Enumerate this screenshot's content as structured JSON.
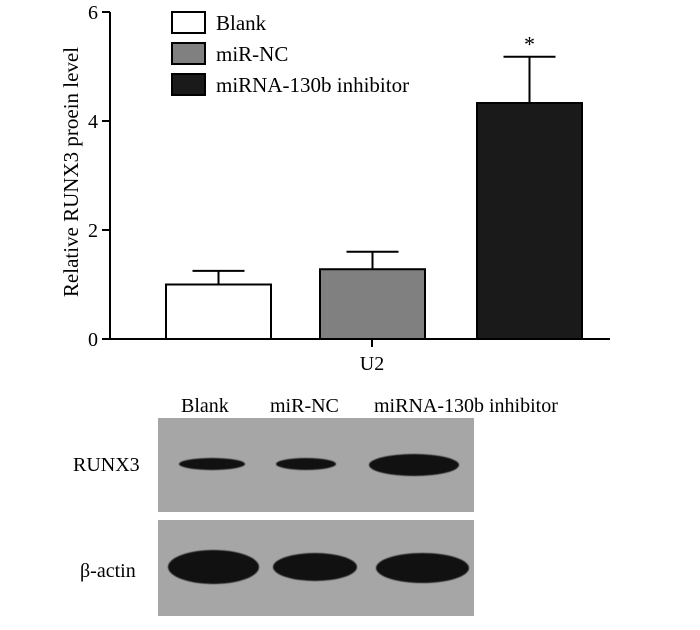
{
  "chart_data": {
    "type": "bar",
    "title": "",
    "xlabel": "",
    "ylabel": "Relative RUNX3 proein level",
    "categories": [
      "U2"
    ],
    "ylim": [
      0,
      6
    ],
    "yticks": [
      "0",
      "2",
      "4",
      "6"
    ],
    "grid": false,
    "legend_position": "top-left",
    "series": [
      {
        "name": "Blank",
        "values": [
          1.0
        ],
        "error": [
          0.25
        ],
        "color": "#ffffff"
      },
      {
        "name": "miR-NC",
        "values": [
          1.28
        ],
        "error": [
          0.32
        ],
        "color": "#808080"
      },
      {
        "name": "miRNA-130b inhibitor",
        "values": [
          4.33
        ],
        "error": [
          0.85
        ],
        "color": "#1a1a1a"
      }
    ],
    "annotations": [
      {
        "series": "miRNA-130b inhibitor",
        "text": "*"
      }
    ]
  },
  "blot": {
    "lane_labels": [
      "Blank",
      "miR-NC",
      "miRNA-130b inhibitor"
    ],
    "rows": [
      {
        "label": "RUNX3",
        "band_intensity": [
          0.45,
          0.45,
          1.0
        ]
      },
      {
        "label": "β-actin",
        "band_intensity": [
          1.0,
          0.9,
          0.95
        ]
      }
    ],
    "background_color": "#a6a6a6",
    "band_color": "#111111"
  }
}
